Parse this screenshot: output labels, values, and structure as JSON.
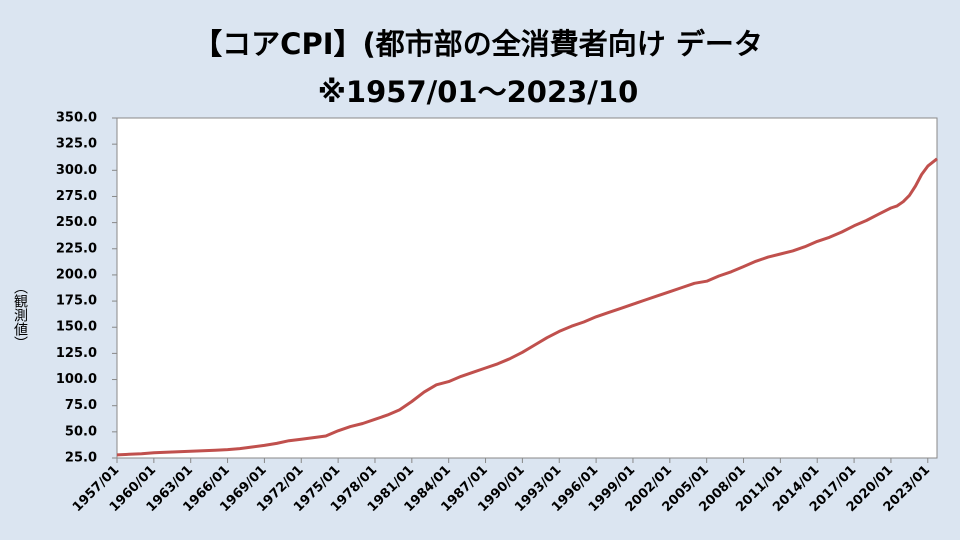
{
  "chart_data": {
    "type": "line",
    "title": "【コアCPI】(都市部の全消費者向け データ",
    "subtitle": "※1957/01～2023/10",
    "y_label": "（観測値）",
    "x": [
      1957,
      1958,
      1959,
      1960,
      1961,
      1962,
      1963,
      1964,
      1965,
      1966,
      1967,
      1968,
      1969,
      1970,
      1971,
      1972,
      1973,
      1974,
      1975,
      1976,
      1977,
      1978,
      1979,
      1980,
      1981,
      1982,
      1983,
      1984,
      1985,
      1986,
      1987,
      1988,
      1989,
      1990,
      1991,
      1992,
      1993,
      1994,
      1995,
      1996,
      1997,
      1998,
      1999,
      2000,
      2001,
      2002,
      2003,
      2004,
      2005,
      2006,
      2007,
      2008,
      2009,
      2010,
      2011,
      2012,
      2013,
      2014,
      2015,
      2016,
      2017,
      2018,
      2019,
      2020,
      2020.5,
      2021,
      2021.5,
      2022,
      2022.5,
      2023,
      2023.75
    ],
    "series": [
      {
        "color": "#c0504d",
        "values": [
          28,
          28.5,
          29,
          30,
          30.5,
          31,
          31.5,
          32,
          32.5,
          33,
          34,
          35.5,
          37,
          39,
          41.5,
          43,
          44.5,
          46,
          51,
          55,
          58,
          62,
          66,
          71,
          79,
          88,
          95,
          98,
          103,
          107,
          111,
          115,
          120,
          126,
          133,
          140,
          146,
          151,
          155,
          160,
          164,
          168,
          172,
          176,
          180,
          184,
          188,
          192,
          194,
          199,
          203,
          208,
          213,
          217,
          220,
          223,
          227,
          232,
          236,
          241,
          247,
          252,
          258,
          264,
          266,
          270,
          276,
          285,
          296,
          304,
          311
        ]
      }
    ],
    "xlim": [
      1957,
      2023.75
    ],
    "xticks": [
      {
        "value": 1957,
        "label": "1957/01"
      },
      {
        "value": 1960,
        "label": "1960/01"
      },
      {
        "value": 1963,
        "label": "1963/01"
      },
      {
        "value": 1966,
        "label": "1966/01"
      },
      {
        "value": 1969,
        "label": "1969/01"
      },
      {
        "value": 1972,
        "label": "1972/01"
      },
      {
        "value": 1975,
        "label": "1975/01"
      },
      {
        "value": 1978,
        "label": "1978/01"
      },
      {
        "value": 1981,
        "label": "1981/01"
      },
      {
        "value": 1984,
        "label": "1984/01"
      },
      {
        "value": 1987,
        "label": "1987/01"
      },
      {
        "value": 1990,
        "label": "1990/01"
      },
      {
        "value": 1993,
        "label": "1993/01"
      },
      {
        "value": 1996,
        "label": "1996/01"
      },
      {
        "value": 1999,
        "label": "1999/01"
      },
      {
        "value": 2002,
        "label": "2002/01"
      },
      {
        "value": 2005,
        "label": "2005/01"
      },
      {
        "value": 2008,
        "label": "2008/01"
      },
      {
        "value": 2011,
        "label": "2011/01"
      },
      {
        "value": 2014,
        "label": "2014/01"
      },
      {
        "value": 2017,
        "label": "2017/01"
      },
      {
        "value": 2020,
        "label": "2020/01"
      },
      {
        "value": 2023,
        "label": "2023/01"
      }
    ],
    "ylim": [
      25,
      350
    ],
    "yticks": [
      {
        "value": 25,
        "label": "25.0"
      },
      {
        "value": 50,
        "label": "50.0"
      },
      {
        "value": 75,
        "label": "75.0"
      },
      {
        "value": 100,
        "label": "100.0"
      },
      {
        "value": 125,
        "label": "125.0"
      },
      {
        "value": 150,
        "label": "150.0"
      },
      {
        "value": 175,
        "label": "175.0"
      },
      {
        "value": 200,
        "label": "200.0"
      },
      {
        "value": 225,
        "label": "225.0"
      },
      {
        "value": 250,
        "label": "250.0"
      },
      {
        "value": 275,
        "label": "275.0"
      },
      {
        "value": 300,
        "label": "300.0"
      },
      {
        "value": 325,
        "label": "325.0"
      },
      {
        "value": 350,
        "label": "350.0"
      }
    ],
    "grid": false
  }
}
